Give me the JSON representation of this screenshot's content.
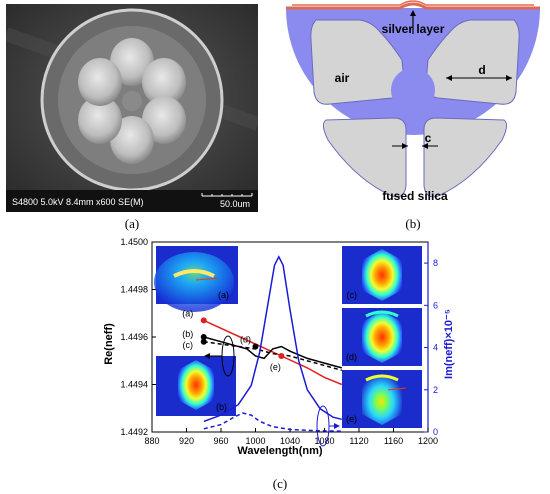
{
  "figure": {
    "captions": {
      "a": "(a)",
      "b": "(b)",
      "c": "(c)"
    }
  },
  "sem": {
    "info_bar": "S4800 5.0kV 8.4mm x600 SE(M)",
    "scale_label": "50.0um"
  },
  "cross_section": {
    "labels": {
      "silver_layer": "silver layer",
      "air": "air",
      "d": "d",
      "c": "c",
      "fused_silica": "fused silica"
    },
    "colors": {
      "silica": "#8b8bef",
      "air": "#d4d4d4",
      "silver": "#e0694f"
    }
  },
  "chart_data": {
    "type": "line",
    "xlabel": "Wavelength(nm)",
    "ylabel_left": "Re(neff)",
    "ylabel_right": "Im(neff)×10⁻⁵",
    "xlim": [
      880,
      1200
    ],
    "ylim_left": [
      1.4492,
      1.45
    ],
    "ylim_right": [
      0,
      9
    ],
    "x_ticks": [
      "880",
      "920",
      "960",
      "1000",
      "1040",
      "1080",
      "1120",
      "1160",
      "1200"
    ],
    "y_ticks_left": [
      "1.4492",
      "1.4494",
      "1.4496",
      "1.4498",
      "1.4500"
    ],
    "y_ticks_right": [
      "0",
      "2",
      "4",
      "6",
      "8"
    ],
    "series": [
      {
        "color": "#e0201d",
        "style": "solid",
        "axis": "left",
        "x": [
          940,
          1000,
          1030,
          1060,
          1080,
          1100
        ],
        "y": [
          1.44967,
          1.44957,
          1.44952,
          1.44947,
          1.44943,
          1.4494
        ]
      },
      {
        "color": "#000000",
        "style": "solid",
        "axis": "left",
        "x": [
          940,
          960,
          990,
          1000,
          1010,
          1020,
          1030,
          1040,
          1060,
          1080,
          1100
        ],
        "y": [
          1.4496,
          1.44958,
          1.44955,
          1.44952,
          1.44951,
          1.44955,
          1.44956,
          1.44954,
          1.44951,
          1.44949,
          1.44947
        ]
      },
      {
        "color": "#000000",
        "style": "dashed",
        "axis": "left",
        "x": [
          940,
          960,
          980,
          1000,
          1020,
          1040,
          1060,
          1080,
          1100
        ],
        "y": [
          1.44958,
          1.44957,
          1.44956,
          1.44955,
          1.44953,
          1.44952,
          1.4495,
          1.44948,
          1.44946
        ]
      },
      {
        "color": "#1b1bd6",
        "style": "solid",
        "axis": "right",
        "x": [
          940,
          960,
          980,
          995,
          1005,
          1015,
          1022,
          1027,
          1032,
          1040,
          1050,
          1060,
          1075,
          1090,
          1100
        ],
        "y": [
          0.5,
          0.8,
          1.3,
          2.2,
          3.8,
          6.2,
          7.9,
          8.3,
          7.9,
          5.8,
          3.4,
          2.0,
          1.1,
          0.7,
          0.6
        ]
      },
      {
        "color": "#1b1bd6",
        "style": "dashed",
        "axis": "right",
        "x": [
          940,
          960,
          975,
          985,
          995,
          1005,
          1020,
          1040,
          1060,
          1080,
          1100
        ],
        "y": [
          0.15,
          0.35,
          0.7,
          0.9,
          0.8,
          0.5,
          0.25,
          0.12,
          0.08,
          0.05,
          0.04
        ]
      }
    ],
    "markers": [
      {
        "label": "(a)",
        "x": 940,
        "y": 1.44967,
        "color": "#e0201d"
      },
      {
        "label": "(b)",
        "x": 940,
        "y": 1.4496,
        "color": "#000000"
      },
      {
        "label": "(c)",
        "x": 940,
        "y": 1.44958,
        "color": "#000000"
      },
      {
        "label": "(d)",
        "x": 1000,
        "y": 1.44956,
        "color": "#000000"
      },
      {
        "label": "(e)",
        "x": 1030,
        "y": 1.44952,
        "color": "#e0201d"
      }
    ],
    "inset_labels": [
      "(a)",
      "(b)",
      "(c)",
      "(d)",
      "(e)"
    ]
  }
}
